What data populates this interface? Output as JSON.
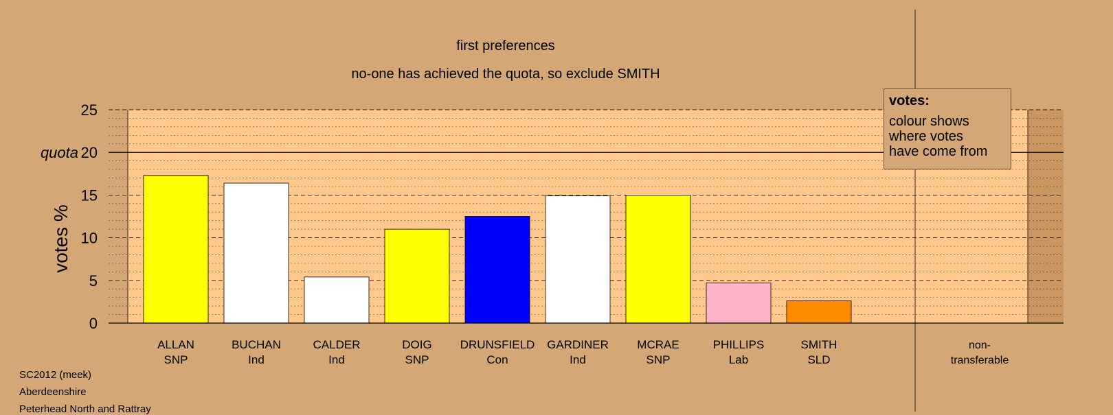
{
  "chart_data": {
    "type": "bar",
    "title": "first preferences",
    "subtitle": "no-one has achieved the quota, so exclude SMITH",
    "ylabel": "votes %",
    "ylim": [
      0,
      25
    ],
    "yticks": [
      "0",
      "5",
      "10",
      "15",
      "20",
      "25"
    ],
    "quota": 20,
    "quota_label": "quota",
    "categories": [
      {
        "name": "ALLAN",
        "party": "SNP",
        "value": 17.3,
        "color": "#ffff00"
      },
      {
        "name": "BUCHAN",
        "party": "Ind",
        "value": 16.4,
        "color": "#ffffff"
      },
      {
        "name": "CALDER",
        "party": "Ind",
        "value": 5.4,
        "color": "#ffffff"
      },
      {
        "name": "DOIG",
        "party": "SNP",
        "value": 11.0,
        "color": "#ffff00"
      },
      {
        "name": "DRUNSFIELD",
        "party": "Con",
        "value": 12.5,
        "color": "#0000ff"
      },
      {
        "name": "GARDINER",
        "party": "Ind",
        "value": 14.9,
        "color": "#ffffff"
      },
      {
        "name": "MCRAE",
        "party": "SNP",
        "value": 15.0,
        "color": "#ffff00"
      },
      {
        "name": "PHILLIPS",
        "party": "Lab",
        "value": 4.7,
        "color": "#ffb2c8"
      },
      {
        "name": "SMITH",
        "party": "SLD",
        "value": 2.6,
        "color": "#ff8c00"
      }
    ],
    "nontransferable_label": [
      "non-",
      "transferable"
    ],
    "grid": true,
    "legend_position": "top-right"
  },
  "legend": {
    "title": "votes:",
    "lines": [
      "colour shows",
      "where votes",
      "have come from"
    ]
  },
  "footer": {
    "line1": "SC2012 (meek)",
    "line2": "Aberdeenshire",
    "line3": "Peterhead North and Rattray"
  },
  "colors": {
    "background": "#d4a876",
    "plot_area": "#ffc98e"
  }
}
